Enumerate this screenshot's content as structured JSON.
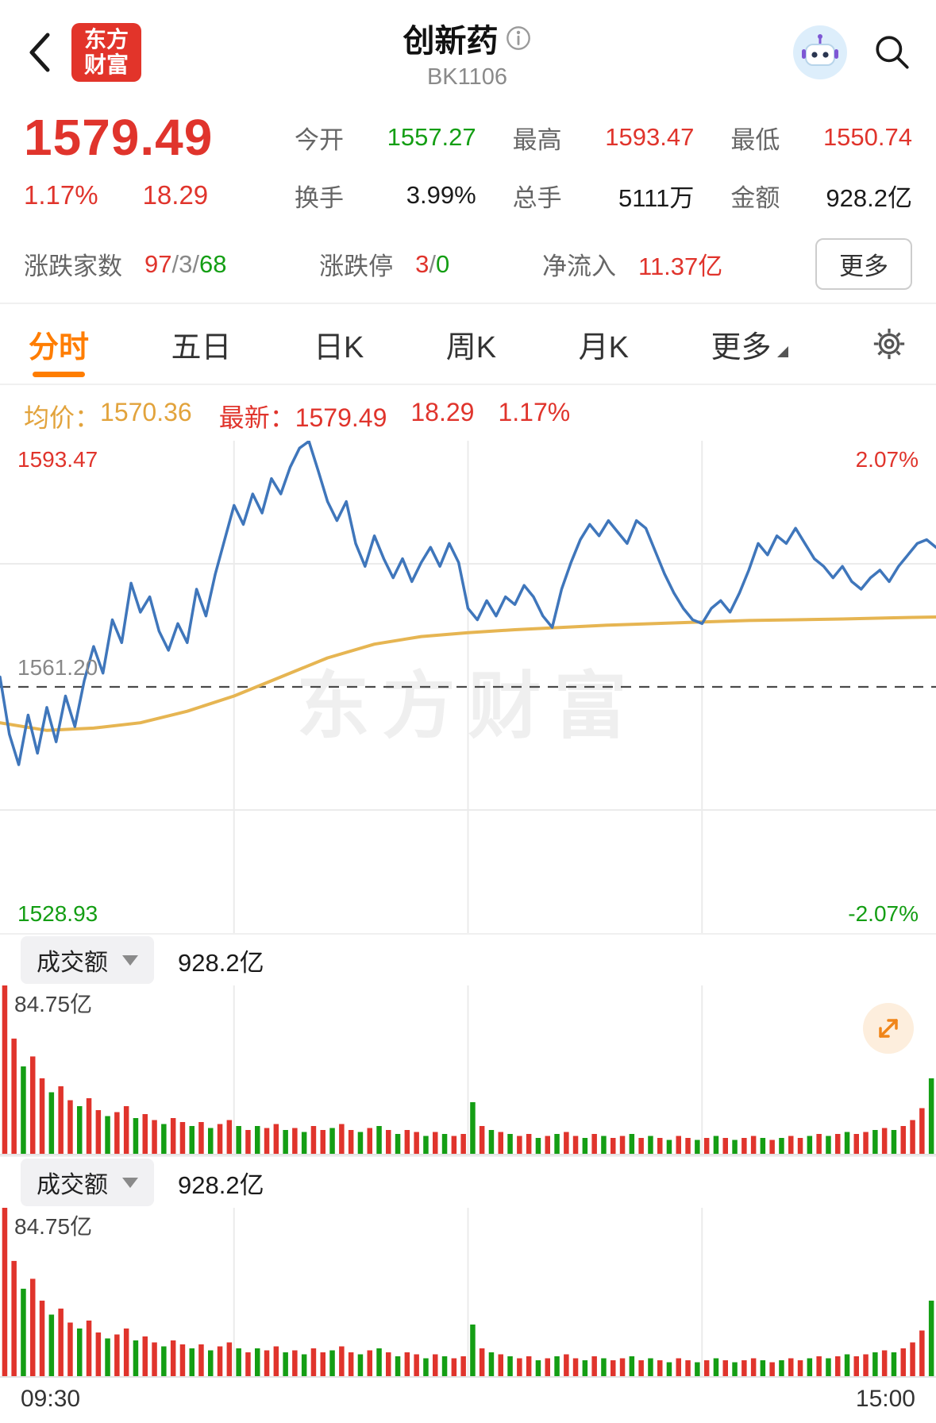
{
  "colors": {
    "red": "#e0342c",
    "green": "#149e14",
    "orange": "#ff7d00",
    "avg_line": "#e6b552",
    "price_line": "#3f76bb",
    "dash_line": "#4a4a4a",
    "logo_red": "#e2342a"
  },
  "header": {
    "logo_top": "东方",
    "logo_bottom": "财富",
    "title": "创新药",
    "code": "BK1106"
  },
  "quote": {
    "price": "1579.49",
    "change_pct": "1.17%",
    "change_abs": "18.29",
    "stats": [
      {
        "label": "今开",
        "value": "1557.27",
        "tone": "green"
      },
      {
        "label": "最高",
        "value": "1593.47",
        "tone": "red"
      },
      {
        "label": "最低",
        "value": "1550.74",
        "tone": "red"
      },
      {
        "label": "换手",
        "value": "3.99%",
        "tone": "dark"
      },
      {
        "label": "总手",
        "value": "5111万",
        "tone": "dark"
      },
      {
        "label": "金额",
        "value": "928.2亿",
        "tone": "dark"
      }
    ],
    "breadth": {
      "label": "涨跌家数",
      "up": "97",
      "flat": "3",
      "down": "68",
      "sep": "/"
    },
    "limits": {
      "label": "涨跌停",
      "up": "3",
      "down": "0",
      "sep": "/"
    },
    "inflow": {
      "label": "净流入",
      "value": "11.37亿"
    },
    "more_button": "更多"
  },
  "tabs": {
    "items": [
      {
        "label": "分时",
        "active": true
      },
      {
        "label": "五日",
        "active": false
      },
      {
        "label": "日K",
        "active": false
      },
      {
        "label": "周K",
        "active": false
      },
      {
        "label": "月K",
        "active": false
      },
      {
        "label": "更多",
        "active": false
      }
    ]
  },
  "legend": {
    "avg_label": "均价：",
    "avg_value": "1570.36",
    "last_label": "最新：",
    "last_value": "1579.49",
    "last_change": "18.29",
    "last_pct": "1.17%"
  },
  "chart_data": [
    {
      "type": "line",
      "title": "创新药 分时走势",
      "x_range": [
        "09:30",
        "15:00"
      ],
      "ylim": [
        1528.93,
        1593.47
      ],
      "prev_close": 1561.2,
      "labels": {
        "top_left": "1593.47",
        "mid_left": "1561.20",
        "bottom_left": "1528.93",
        "top_right": "2.07%",
        "bottom_right": "-2.07%"
      },
      "series": [
        {
          "name": "price",
          "values": [
            1562.5,
            1555.0,
            1551.0,
            1557.5,
            1552.5,
            1558.5,
            1554.0,
            1560.0,
            1556.0,
            1562.0,
            1566.5,
            1563.0,
            1570.0,
            1567.0,
            1574.8,
            1571.0,
            1573.0,
            1568.5,
            1566.0,
            1569.5,
            1567.0,
            1574.0,
            1570.5,
            1576.0,
            1580.5,
            1585.0,
            1582.5,
            1586.5,
            1584.0,
            1588.5,
            1586.5,
            1590.0,
            1592.5,
            1593.4,
            1589.5,
            1585.5,
            1583.0,
            1585.5,
            1580.0,
            1577.0,
            1581.0,
            1578.0,
            1575.5,
            1578.0,
            1575.0,
            1577.5,
            1579.5,
            1577.0,
            1580.0,
            1577.5,
            1571.5,
            1570.0,
            1572.5,
            1570.5,
            1573.0,
            1572.0,
            1574.5,
            1573.0,
            1570.5,
            1569.0,
            1574.0,
            1577.5,
            1580.5,
            1582.5,
            1581.0,
            1583.0,
            1581.5,
            1580.0,
            1583.0,
            1582.0,
            1579.0,
            1576.0,
            1573.5,
            1571.5,
            1570.0,
            1569.5,
            1571.5,
            1572.5,
            1571.0,
            1573.5,
            1576.5,
            1580.0,
            1578.5,
            1581.0,
            1580.0,
            1582.0,
            1580.0,
            1578.0,
            1577.0,
            1575.5,
            1577.0,
            1575.0,
            1574.0,
            1575.5,
            1576.5,
            1575.0,
            1577.0,
            1578.5,
            1580.0,
            1580.5,
            1579.49
          ]
        },
        {
          "name": "avg",
          "values": [
            1556.5,
            1555.5,
            1555.8,
            1556.5,
            1558.0,
            1560.0,
            1562.5,
            1565.0,
            1566.8,
            1567.8,
            1568.3,
            1568.7,
            1569.0,
            1569.3,
            1569.5,
            1569.7,
            1569.9,
            1570.0,
            1570.1,
            1570.25,
            1570.36
          ]
        }
      ]
    },
    {
      "type": "bar",
      "title": "成交额",
      "unit": "亿",
      "ymax": 84.75,
      "max_label": "84.75亿",
      "total": "928.2亿",
      "values": [
        84.75,
        58,
        44,
        49,
        38,
        31,
        34,
        27,
        24,
        28,
        22,
        19,
        21,
        24,
        18,
        20,
        17,
        15,
        18,
        16,
        14,
        16,
        13,
        15,
        17,
        14,
        12,
        14,
        13,
        15,
        12,
        13,
        11,
        14,
        12,
        13,
        15,
        12,
        11,
        13,
        14,
        12,
        10,
        12,
        11,
        9,
        11,
        10,
        9,
        10,
        26,
        14,
        12,
        11,
        10,
        9,
        10,
        8,
        9,
        10,
        11,
        9,
        8,
        10,
        9,
        8,
        9,
        10,
        8,
        9,
        8,
        7,
        9,
        8,
        7,
        8,
        9,
        8,
        7,
        8,
        9,
        8,
        7,
        8,
        9,
        8,
        9,
        10,
        9,
        10,
        11,
        10,
        11,
        12,
        13,
        12,
        14,
        17,
        23,
        38
      ],
      "updown": [
        "rrgrrgrrgr",
        "rgrrgrrgrr",
        "grgrrgrgrr",
        "grgrrgrrgr",
        "grgrrgrgrr",
        "grgrgrrgrg",
        "rrgrgrrgrg",
        "rgrrgrgrgr",
        "rgrgrrgrgr",
        "grrgrgrrrg"
      ]
    }
  ],
  "volume_panel": {
    "selector_label": "成交额",
    "total_value": "928.2亿",
    "max_label": "84.75亿"
  },
  "time_axis": {
    "start": "09:30",
    "end": "15:00"
  },
  "watermark": "东方财富"
}
